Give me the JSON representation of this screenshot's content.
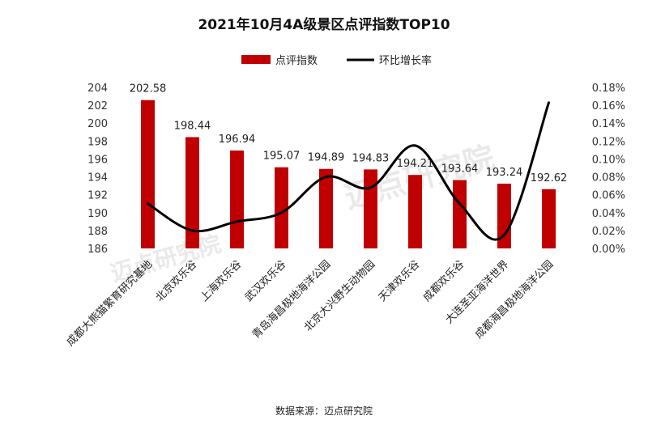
{
  "chart_data": {
    "type": "bar",
    "title": "2021年10月4A级景区点评指数TOP10",
    "categories": [
      "成都大熊猫繁育研究基地",
      "北京欢乐谷",
      "上海欢乐谷",
      "武汉欢乐谷",
      "青岛海昌极地海洋公园",
      "北京大兴野生动物园",
      "天津欢乐谷",
      "成都欢乐谷",
      "大连圣亚海洋世界",
      "成都海昌极地海洋公园"
    ],
    "series": [
      {
        "name": "点评指数",
        "type": "bar",
        "axis": "left",
        "color": "#c00000",
        "values": [
          202.58,
          198.44,
          196.94,
          195.07,
          194.89,
          194.83,
          194.21,
          193.64,
          193.24,
          192.62
        ],
        "labels": [
          "202.58",
          "198.44",
          "196.94",
          "195.07",
          "194.89",
          "194.83",
          "194.21",
          "193.64",
          "193.24",
          "192.62"
        ]
      },
      {
        "name": "环比增长率",
        "type": "line",
        "axis": "right",
        "color": "#000000",
        "smooth": true,
        "values": [
          0.05,
          0.02,
          0.03,
          0.04,
          0.08,
          0.068,
          0.115,
          0.05,
          0.015,
          0.163
        ]
      }
    ],
    "y_left": {
      "min": 186,
      "max": 204,
      "ticks": [
        "186",
        "188",
        "190",
        "192",
        "194",
        "196",
        "198",
        "200",
        "202",
        "204"
      ]
    },
    "y_right": {
      "min": 0,
      "max": 0.18,
      "ticks": [
        "0.00%",
        "0.02%",
        "0.04%",
        "0.06%",
        "0.08%",
        "0.10%",
        "0.12%",
        "0.14%",
        "0.16%",
        "0.18%"
      ]
    },
    "legend_position": "top",
    "grid": false
  },
  "source": "数据来源：迈点研究院",
  "watermark": [
    "迈点研究院",
    "迈点研究院"
  ]
}
